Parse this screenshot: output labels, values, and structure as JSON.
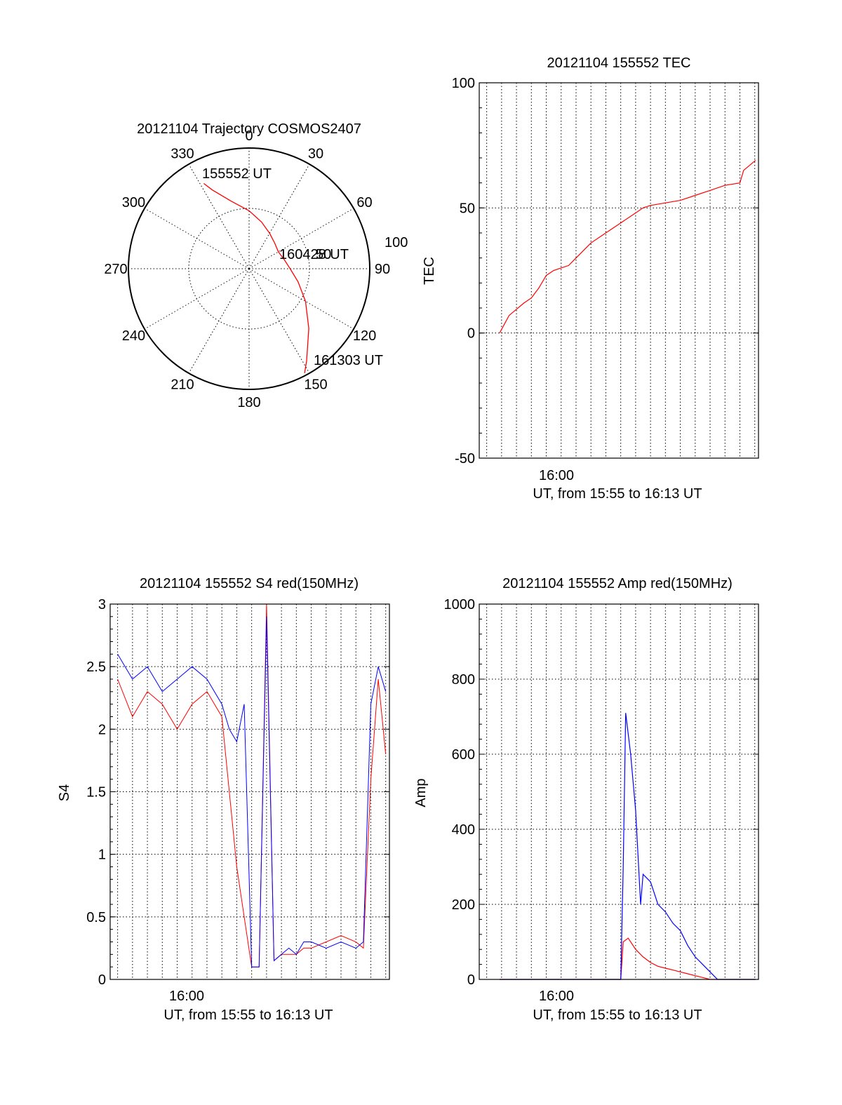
{
  "colors": {
    "red": "#ff0000",
    "blue": "#0000ff",
    "black": "#000000"
  },
  "chart_data": [
    {
      "id": "trajectory",
      "type": "polar-trajectory",
      "title": "20121104 Trajectory COSMOS2407",
      "angle_labels": [
        "0",
        "30",
        "60",
        "90",
        "120",
        "150",
        "180",
        "210",
        "240",
        "270",
        "300",
        "330"
      ],
      "radius_labels": [
        "50",
        "100"
      ],
      "start_label": "155552 UT",
      "mid_label": "160428 UT",
      "end_label": "161303 UT",
      "trajectory": {
        "azimuth_deg": [
          332,
          335,
          345,
          0,
          15,
          30,
          45,
          60,
          75,
          90,
          105,
          120,
          135,
          148,
          152
        ],
        "zenith": [
          80,
          72,
          58,
          48,
          40,
          34,
          30,
          28,
          30,
          34,
          42,
          54,
          70,
          90,
          98
        ]
      },
      "color": "#ff0000"
    },
    {
      "id": "tec",
      "type": "line",
      "title": "20121104 155552 TEC",
      "xlabel": "UT, from 15:55 to 16:13 UT",
      "ylabel": "TEC",
      "xlim": [
        "15:54:30",
        "16:13:15"
      ],
      "ylim": [
        -50,
        100
      ],
      "yticks": [
        "100",
        "50",
        "0",
        "-50"
      ],
      "xtick_label": "16:00",
      "grid": true,
      "series": [
        {
          "color": "#ff0000",
          "x": [
            "15:55:52",
            "15:56:30",
            "15:57:30",
            "15:58:00",
            "15:58:30",
            "15:59:00",
            "15:59:30",
            "16:00:00",
            "16:00:30",
            "16:01:00",
            "16:02:00",
            "16:03:00",
            "16:04:00",
            "16:05:00",
            "16:05:30",
            "16:06:00",
            "16:07:00",
            "16:08:00",
            "16:09:00",
            "16:10:00",
            "16:11:00",
            "16:12:00",
            "16:12:15",
            "16:13:03"
          ],
          "y": [
            0,
            7,
            12,
            14,
            18,
            23,
            25,
            26,
            27,
            30,
            36,
            40,
            44,
            48,
            50,
            51,
            52,
            53,
            55,
            57,
            59,
            60,
            65,
            69
          ]
        }
      ]
    },
    {
      "id": "s4",
      "type": "line",
      "title": "20121104 155552 S4 red(150MHz)",
      "xlabel": "UT, from 15:55 to 16:13 UT",
      "ylabel": "S4",
      "xlim": [
        "15:54:30",
        "16:13:15"
      ],
      "ylim": [
        0,
        3
      ],
      "yticks": [
        "3",
        "2.5",
        "2",
        "1.5",
        "1",
        "0.5",
        "0"
      ],
      "xtick_label": "16:00",
      "grid": true,
      "series": [
        {
          "color": "#ff0000",
          "x": [
            "15:55:00",
            "15:56:00",
            "15:57:00",
            "15:58:00",
            "15:59:00",
            "16:00:00",
            "16:01:00",
            "16:02:00",
            "16:02:30",
            "16:03:00",
            "16:03:30",
            "16:04:00",
            "16:04:30",
            "16:05:00",
            "16:05:30",
            "16:06:00",
            "16:06:30",
            "16:07:00",
            "16:07:30",
            "16:08:00",
            "16:09:00",
            "16:10:00",
            "16:11:00",
            "16:11:30",
            "16:12:00",
            "16:12:30",
            "16:13:00"
          ],
          "y": [
            2.4,
            2.1,
            2.3,
            2.2,
            2.0,
            2.2,
            2.3,
            2.1,
            1.5,
            0.9,
            0.5,
            0.1,
            0.1,
            3.0,
            0.15,
            0.2,
            0.2,
            0.2,
            0.25,
            0.25,
            0.3,
            0.35,
            0.3,
            0.25,
            1.6,
            2.4,
            1.8
          ]
        },
        {
          "color": "#0000ff",
          "x": [
            "15:55:00",
            "15:56:00",
            "15:57:00",
            "15:58:00",
            "15:59:00",
            "16:00:00",
            "16:01:00",
            "16:02:00",
            "16:02:30",
            "16:03:00",
            "16:03:30",
            "16:04:00",
            "16:04:30",
            "16:05:00",
            "16:05:30",
            "16:06:00",
            "16:06:30",
            "16:07:00",
            "16:07:30",
            "16:08:00",
            "16:09:00",
            "16:10:00",
            "16:11:00",
            "16:11:30",
            "16:12:00",
            "16:12:30",
            "16:13:00"
          ],
          "y": [
            2.6,
            2.4,
            2.5,
            2.3,
            2.4,
            2.5,
            2.4,
            2.2,
            2.0,
            1.9,
            2.2,
            0.1,
            0.1,
            2.9,
            0.15,
            0.2,
            0.25,
            0.2,
            0.3,
            0.3,
            0.25,
            0.3,
            0.25,
            0.3,
            2.2,
            2.5,
            2.3
          ]
        }
      ]
    },
    {
      "id": "amp",
      "type": "line",
      "title": "20121104 155552 Amp red(150MHz)",
      "xlabel": "UT, from 15:55 to 16:13 UT",
      "ylabel": "Amp",
      "xlim": [
        "15:54:30",
        "16:13:15"
      ],
      "ylim": [
        0,
        1000
      ],
      "yticks": [
        "1000",
        "800",
        "600",
        "400",
        "200",
        "0"
      ],
      "xtick_label": "16:00",
      "grid": true,
      "series": [
        {
          "color": "#ff0000",
          "x": [
            "15:55:52",
            "16:03:00",
            "16:04:00",
            "16:04:10",
            "16:04:30",
            "16:05:00",
            "16:05:30",
            "16:06:00",
            "16:06:30",
            "16:07:00",
            "16:07:30",
            "16:08:00",
            "16:08:30",
            "16:09:00",
            "16:09:30",
            "16:10:00",
            "16:13:03"
          ],
          "y": [
            0,
            0,
            0,
            100,
            110,
            80,
            60,
            45,
            35,
            30,
            25,
            20,
            15,
            10,
            5,
            0,
            0
          ]
        },
        {
          "color": "#0000ff",
          "x": [
            "15:55:52",
            "16:03:00",
            "16:04:00",
            "16:04:10",
            "16:04:20",
            "16:04:40",
            "16:05:00",
            "16:05:20",
            "16:05:30",
            "16:06:00",
            "16:06:30",
            "16:07:00",
            "16:07:30",
            "16:08:00",
            "16:08:30",
            "16:09:00",
            "16:09:30",
            "16:10:00",
            "16:10:30",
            "16:13:03"
          ],
          "y": [
            0,
            0,
            0,
            300,
            710,
            600,
            450,
            200,
            280,
            260,
            200,
            180,
            150,
            130,
            90,
            60,
            40,
            20,
            0,
            0
          ]
        }
      ]
    }
  ]
}
